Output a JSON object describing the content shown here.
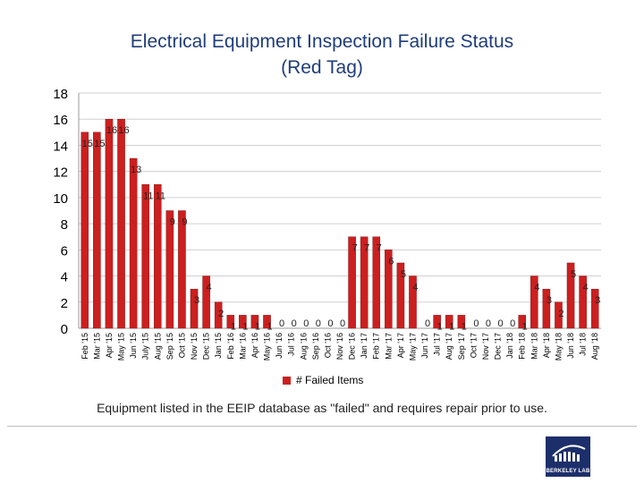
{
  "chart_data": {
    "type": "bar",
    "title_line1": "Electrical Equipment Inspection Failure Status",
    "title_line2": "(Red Tag)",
    "ylim": [
      0,
      18
    ],
    "yticks": [
      0,
      2,
      4,
      6,
      8,
      10,
      12,
      14,
      16,
      18
    ],
    "categories": [
      "Feb '15",
      "Mar '15",
      "Apr '15",
      "May '15",
      "Jun '15",
      "July '15",
      "Aug '15",
      "Sep '15",
      "Oct '15",
      "Nov '15",
      "Dec '15",
      "Jan '15",
      "Feb '16",
      "Mar '16",
      "Apr '16",
      "May '16",
      "Jun '16",
      "Jul '16",
      "Aug '16",
      "Sep '16",
      "Oct '16",
      "Nov '16",
      "Dec '16",
      "Jan '17",
      "Feb '17",
      "Mar '17",
      "Apr '17",
      "May '17",
      "Jun '17",
      "Jul '17",
      "Aug '17",
      "Sep '17",
      "Oct '17",
      "Nov '17",
      "Dec '17",
      "Jan '18",
      "Feb '18",
      "Mar '18",
      "Apr '18",
      "May '18",
      "Jun '18",
      "Jul '18",
      "Aug '18"
    ],
    "series": [
      {
        "name": "# Failed Items",
        "color": "#cc1f1f",
        "values": [
          15,
          15,
          16,
          16,
          13,
          11,
          11,
          9,
          9,
          3,
          4,
          2,
          1,
          1,
          1,
          1,
          0,
          0,
          0,
          0,
          0,
          0,
          7,
          7,
          7,
          6,
          5,
          4,
          0,
          1,
          1,
          1,
          0,
          0,
          0,
          0,
          1,
          4,
          3,
          2,
          5,
          4,
          3
        ]
      }
    ],
    "legend_label": "# Failed Items",
    "legend_position": "bottom-center"
  },
  "caption": "Equipment listed in the EEIP database as \"failed\" and requires repair prior to use.",
  "logo": {
    "text": "BERKELEY LAB",
    "color": "#1d2f6b"
  }
}
